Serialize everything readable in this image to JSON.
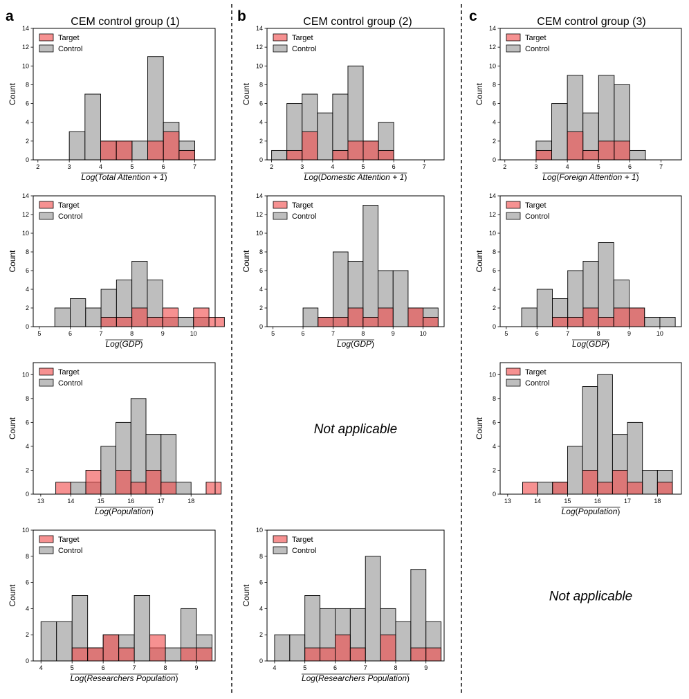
{
  "columns": [
    {
      "letter": "a",
      "title": "CEM control group (1)"
    },
    {
      "letter": "b",
      "title": "CEM control group (2)"
    },
    {
      "letter": "c",
      "title": "CEM control group (3)"
    }
  ],
  "colors": {
    "target": "#f04848",
    "control": "#a8a8a8",
    "overlap": "#b07777"
  },
  "legend": {
    "target": "Target",
    "control": "Control"
  },
  "ylabel": "Count",
  "not_applicable": "Not applicable",
  "not_applicable_cells": [
    {
      "col": 1,
      "row": 2
    },
    {
      "col": 2,
      "row": 3
    }
  ],
  "chart_data": [
    {
      "col": 0,
      "row": 0,
      "type": "bar",
      "xlabel": "Log(Total Attention + 1)",
      "xlim": [
        1.85,
        7.65
      ],
      "ylim": [
        0,
        14
      ],
      "xticks": [
        2,
        3,
        4,
        5,
        6,
        7
      ],
      "yticks": [
        0,
        2,
        4,
        6,
        8,
        10,
        12,
        14
      ],
      "bin_start": 2.0,
      "bin_width": 0.5,
      "series": [
        {
          "name": "Target",
          "values": [
            0,
            0,
            0,
            0,
            2,
            2,
            0,
            2,
            3,
            1,
            0,
            0
          ]
        },
        {
          "name": "Control",
          "values": [
            0,
            0,
            3,
            7,
            2,
            2,
            2,
            11,
            4,
            2,
            0,
            0
          ]
        }
      ]
    },
    {
      "col": 1,
      "row": 0,
      "type": "bar",
      "xlabel": "Log(Domestic Attention + 1)",
      "xlim": [
        1.85,
        7.65
      ],
      "ylim": [
        0,
        14
      ],
      "xticks": [
        2,
        3,
        4,
        5,
        6,
        7
      ],
      "yticks": [
        0,
        2,
        4,
        6,
        8,
        10,
        12,
        14
      ],
      "bin_start": 2.0,
      "bin_width": 0.5,
      "series": [
        {
          "name": "Target",
          "values": [
            0,
            1,
            3,
            0,
            1,
            2,
            2,
            1,
            0,
            0,
            0,
            0
          ]
        },
        {
          "name": "Control",
          "values": [
            1,
            6,
            7,
            5,
            7,
            10,
            2,
            4,
            0,
            0,
            0,
            0
          ]
        }
      ]
    },
    {
      "col": 2,
      "row": 0,
      "type": "bar",
      "xlabel": "Log(Foreign Attention + 1)",
      "xlim": [
        1.85,
        7.65
      ],
      "ylim": [
        0,
        14
      ],
      "xticks": [
        2,
        3,
        4,
        5,
        6,
        7
      ],
      "yticks": [
        0,
        2,
        4,
        6,
        8,
        10,
        12,
        14
      ],
      "bin_start": 2.0,
      "bin_width": 0.5,
      "series": [
        {
          "name": "Target",
          "values": [
            0,
            0,
            1,
            0,
            3,
            1,
            2,
            2,
            0,
            0,
            0,
            0
          ]
        },
        {
          "name": "Control",
          "values": [
            0,
            0,
            2,
            6,
            9,
            5,
            9,
            8,
            1,
            0,
            0,
            0
          ]
        }
      ]
    },
    {
      "col": 0,
      "row": 1,
      "type": "bar",
      "xlabel": "Log(GDP)",
      "xlim": [
        4.8,
        10.7
      ],
      "ylim": [
        0,
        14
      ],
      "xticks": [
        5,
        6,
        7,
        8,
        9,
        10
      ],
      "yticks": [
        0,
        2,
        4,
        6,
        8,
        10,
        12,
        14
      ],
      "bin_start": 5.0,
      "bin_width": 0.5,
      "series": [
        {
          "name": "Target",
          "values": [
            0,
            0,
            0,
            0,
            1,
            1,
            2,
            1,
            2,
            0,
            2,
            1
          ]
        },
        {
          "name": "Control",
          "values": [
            0,
            2,
            3,
            2,
            4,
            5,
            7,
            5,
            1,
            1,
            1,
            0
          ]
        }
      ]
    },
    {
      "col": 1,
      "row": 1,
      "type": "bar",
      "xlabel": "Log(GDP)",
      "xlim": [
        4.8,
        10.7
      ],
      "ylim": [
        0,
        14
      ],
      "xticks": [
        5,
        6,
        7,
        8,
        9,
        10
      ],
      "yticks": [
        0,
        2,
        4,
        6,
        8,
        10,
        12,
        14
      ],
      "bin_start": 5.0,
      "bin_width": 0.5,
      "series": [
        {
          "name": "Target",
          "values": [
            0,
            0,
            0,
            1,
            1,
            2,
            1,
            2,
            0,
            2,
            1
          ]
        },
        {
          "name": "Control",
          "values": [
            0,
            0,
            2,
            1,
            8,
            7,
            13,
            6,
            6,
            2,
            2
          ]
        }
      ]
    },
    {
      "col": 2,
      "row": 1,
      "type": "bar",
      "xlabel": "Log(GDP)",
      "xlim": [
        4.8,
        10.7
      ],
      "ylim": [
        0,
        14
      ],
      "xticks": [
        5,
        6,
        7,
        8,
        9,
        10
      ],
      "yticks": [
        0,
        2,
        4,
        6,
        8,
        10,
        12,
        14
      ],
      "bin_start": 5.0,
      "bin_width": 0.5,
      "series": [
        {
          "name": "Target",
          "values": [
            0,
            0,
            0,
            1,
            1,
            2,
            1,
            2,
            2,
            0,
            0
          ]
        },
        {
          "name": "Control",
          "values": [
            0,
            2,
            4,
            3,
            6,
            7,
            9,
            5,
            2,
            1,
            1
          ]
        }
      ]
    },
    {
      "col": 0,
      "row": 2,
      "type": "bar",
      "xlabel": "Log(Population)",
      "xlim": [
        12.75,
        18.8
      ],
      "ylim": [
        0,
        11
      ],
      "xticks": [
        13,
        14,
        15,
        16,
        17,
        18
      ],
      "yticks": [
        0,
        2,
        4,
        6,
        8,
        10
      ],
      "bin_start": 13.0,
      "bin_width": 0.5,
      "series": [
        {
          "name": "Target",
          "values": [
            0,
            1,
            0,
            2,
            0,
            2,
            1,
            2,
            1,
            0,
            0,
            1
          ]
        },
        {
          "name": "Control",
          "values": [
            0,
            0,
            1,
            1,
            4,
            6,
            8,
            5,
            5,
            1,
            0,
            0
          ]
        }
      ]
    },
    {
      "col": 2,
      "row": 2,
      "type": "bar",
      "xlabel": "Log(Population)",
      "xlim": [
        12.75,
        18.8
      ],
      "ylim": [
        0,
        11
      ],
      "xticks": [
        13,
        14,
        15,
        16,
        17,
        18
      ],
      "yticks": [
        0,
        2,
        4,
        6,
        8,
        10
      ],
      "bin_start": 13.0,
      "bin_width": 0.5,
      "series": [
        {
          "name": "Target",
          "values": [
            0,
            1,
            0,
            1,
            0,
            2,
            1,
            2,
            1,
            0,
            1,
            0
          ]
        },
        {
          "name": "Control",
          "values": [
            0,
            0,
            1,
            1,
            4,
            9,
            10,
            5,
            6,
            2,
            2,
            0
          ]
        }
      ]
    },
    {
      "col": 0,
      "row": 3,
      "type": "bar",
      "xlabel": "Log(Researchers Population)",
      "xlim": [
        3.75,
        9.6
      ],
      "ylim": [
        0,
        10
      ],
      "xticks": [
        4,
        5,
        6,
        7,
        8,
        9
      ],
      "yticks": [
        0,
        2,
        4,
        6,
        8,
        10
      ],
      "bin_start": 4.0,
      "bin_width": 0.5,
      "series": [
        {
          "name": "Target",
          "values": [
            0,
            0,
            1,
            1,
            2,
            1,
            0,
            2,
            0,
            1,
            1
          ]
        },
        {
          "name": "Control",
          "values": [
            3,
            3,
            5,
            1,
            2,
            2,
            5,
            1,
            1,
            4,
            2
          ]
        }
      ]
    },
    {
      "col": 1,
      "row": 3,
      "type": "bar",
      "xlabel": "Log(Researchers Population)",
      "xlim": [
        3.75,
        9.6
      ],
      "ylim": [
        0,
        10
      ],
      "xticks": [
        4,
        5,
        6,
        7,
        8,
        9
      ],
      "yticks": [
        0,
        2,
        4,
        6,
        8,
        10
      ],
      "bin_start": 4.0,
      "bin_width": 0.5,
      "series": [
        {
          "name": "Target",
          "values": [
            0,
            0,
            1,
            1,
            2,
            1,
            0,
            2,
            0,
            1,
            1
          ]
        },
        {
          "name": "Control",
          "values": [
            2,
            2,
            5,
            4,
            4,
            4,
            8,
            4,
            3,
            7,
            3
          ]
        }
      ]
    }
  ]
}
